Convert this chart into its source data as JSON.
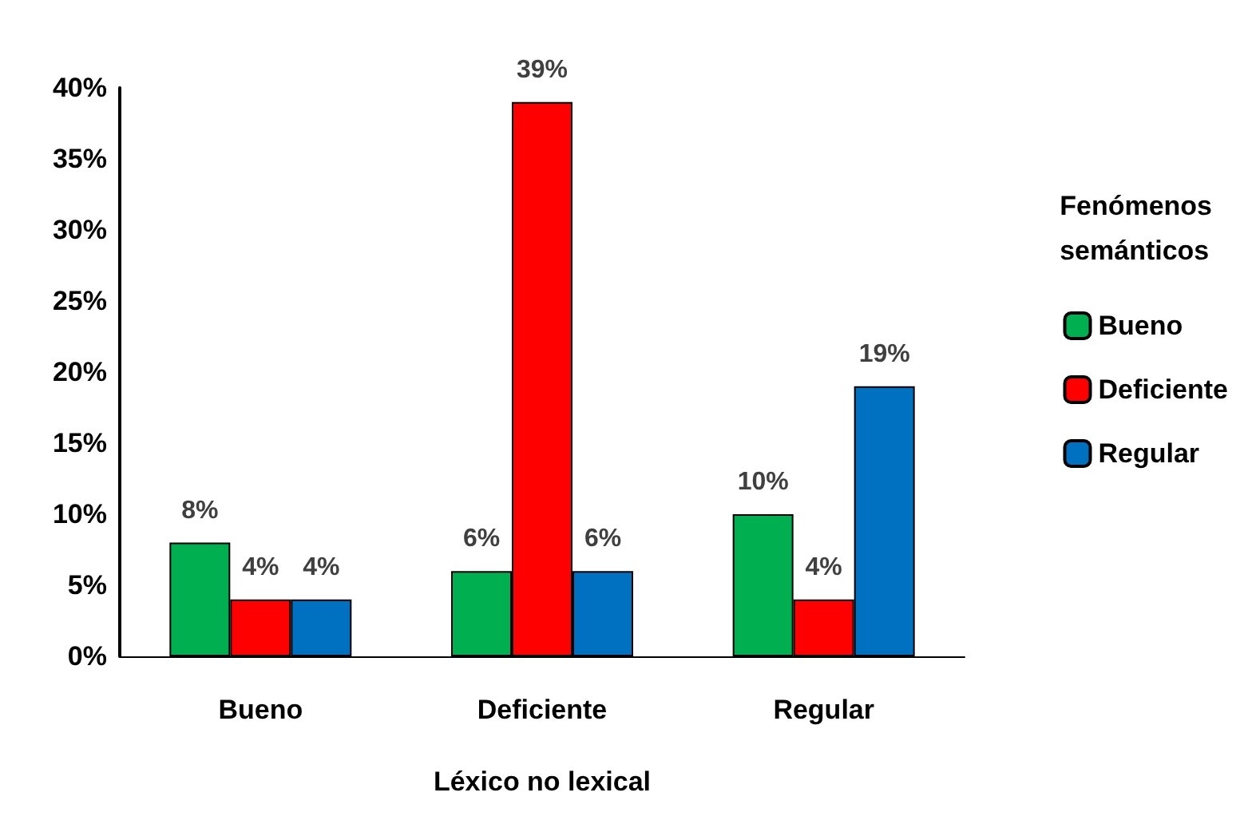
{
  "chart_data": {
    "type": "bar",
    "xlabel": "Léxico no lexical",
    "legend_title": "Fenómenos\nsemánticos",
    "categories": [
      "Bueno",
      "Deficiente",
      "Regular"
    ],
    "series": [
      {
        "name": "Bueno",
        "color": "#00b050",
        "values": [
          8,
          6,
          10
        ],
        "value_labels": [
          "8%",
          "6%",
          "10%"
        ]
      },
      {
        "name": "Deficiente",
        "color": "#ff0000",
        "values": [
          4,
          39,
          4
        ],
        "value_labels": [
          "4%",
          "39%",
          "4%"
        ]
      },
      {
        "name": "Regular",
        "color": "#0070c0",
        "values": [
          4,
          6,
          19
        ],
        "value_labels": [
          "4%",
          "6%",
          "19%"
        ]
      }
    ],
    "ylim": [
      0,
      40
    ],
    "yticks": [
      {
        "value": 0,
        "label": "0%"
      },
      {
        "value": 5,
        "label": "5%"
      },
      {
        "value": 10,
        "label": "10%"
      },
      {
        "value": 15,
        "label": "15%"
      },
      {
        "value": 20,
        "label": "20%"
      },
      {
        "value": 25,
        "label": "25%"
      },
      {
        "value": 30,
        "label": "30%"
      },
      {
        "value": 35,
        "label": "35%"
      },
      {
        "value": 40,
        "label": "40%"
      }
    ],
    "grid": false,
    "legend": "right"
  }
}
